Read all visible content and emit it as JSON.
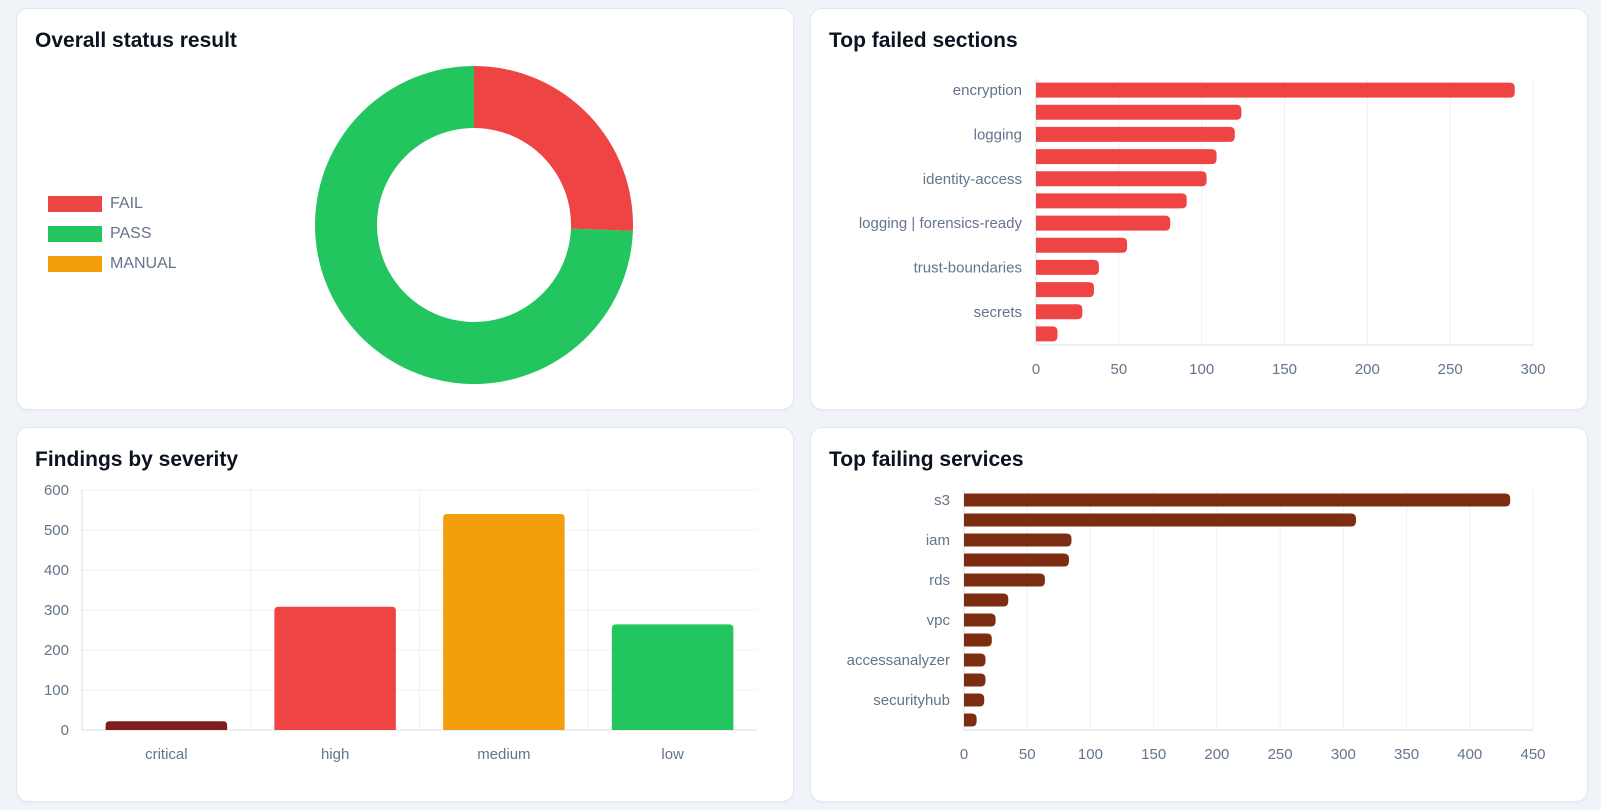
{
  "cards": {
    "status": {
      "title": "Overall status result"
    },
    "sections": {
      "title": "Top failed sections"
    },
    "severity": {
      "title": "Findings by severity"
    },
    "services": {
      "title": "Top failing services"
    }
  },
  "colors": {
    "fail": "#ef4444",
    "pass": "#22c55e",
    "manual": "#f59e0b",
    "critical": "#7f1d1d",
    "service_bar": "#7c2d12"
  },
  "chart_data": [
    {
      "type": "pie",
      "variant": "donut",
      "legend_position": "left",
      "labels": [
        "FAIL",
        "PASS",
        "MANUAL"
      ],
      "values": [
        1080,
        3140,
        0
      ],
      "colors": [
        "#ef4444",
        "#22c55e",
        "#f59e0b"
      ]
    },
    {
      "type": "bar",
      "orientation": "horizontal",
      "grid": true,
      "categories": [
        "encryption",
        "",
        "logging",
        "",
        "identity-access",
        "",
        "logging | forensics-ready",
        "",
        "trust-boundaries",
        "",
        "secrets",
        ""
      ],
      "values": [
        289,
        124,
        120,
        109,
        103,
        91,
        81,
        55,
        38,
        35,
        28,
        13
      ],
      "xlim": [
        0,
        300
      ],
      "xticks": [
        0,
        50,
        100,
        150,
        200,
        250,
        300
      ],
      "color": "#ef4444"
    },
    {
      "type": "bar",
      "orientation": "vertical",
      "grid": true,
      "categories": [
        "critical",
        "high",
        "medium",
        "low"
      ],
      "values": [
        22,
        308,
        540,
        264
      ],
      "colors": [
        "#7f1d1d",
        "#ef4444",
        "#f59e0b",
        "#22c55e"
      ],
      "ylim": [
        0,
        600
      ],
      "yticks": [
        0,
        100,
        200,
        300,
        400,
        500,
        600
      ]
    },
    {
      "type": "bar",
      "orientation": "horizontal",
      "grid": true,
      "categories": [
        "s3",
        "",
        "iam",
        "",
        "rds",
        "",
        "vpc",
        "",
        "accessanalyzer",
        "",
        "securityhub",
        ""
      ],
      "values": [
        432,
        310,
        85,
        83,
        64,
        35,
        25,
        22,
        17,
        17,
        16,
        10
      ],
      "xlim": [
        0,
        450
      ],
      "xticks": [
        0,
        50,
        100,
        150,
        200,
        250,
        300,
        350,
        400,
        450
      ],
      "color": "#7c2d12"
    }
  ]
}
